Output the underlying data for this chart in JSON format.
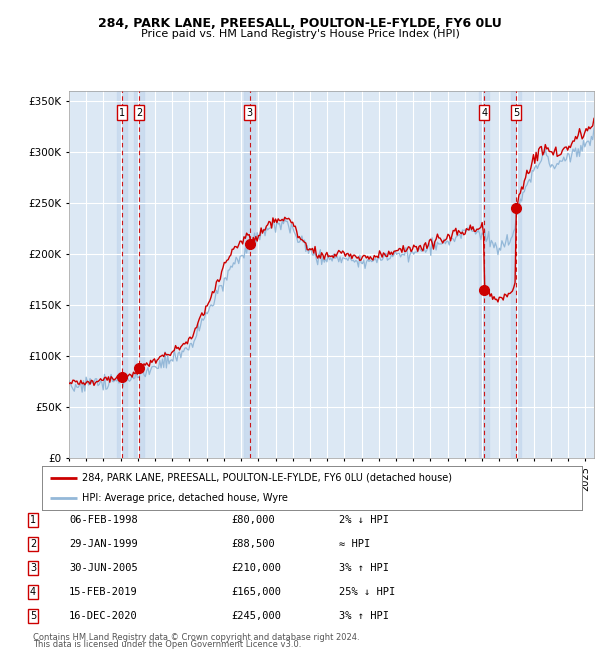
{
  "title1": "284, PARK LANE, PREESALL, POULTON-LE-FYLDE, FY6 0LU",
  "title2": "Price paid vs. HM Land Registry's House Price Index (HPI)",
  "legend_line1": "284, PARK LANE, PREESALL, POULTON-LE-FYLDE, FY6 0LU (detached house)",
  "legend_line2": "HPI: Average price, detached house, Wyre",
  "footer1": "Contains HM Land Registry data © Crown copyright and database right 2024.",
  "footer2": "This data is licensed under the Open Government Licence v3.0.",
  "sales": [
    {
      "num": 1,
      "date": "06-FEB-1998",
      "year": 1998.09,
      "price": 80000,
      "hpi_note": "2% ↓ HPI"
    },
    {
      "num": 2,
      "date": "29-JAN-1999",
      "year": 1999.08,
      "price": 88500,
      "hpi_note": "≈ HPI"
    },
    {
      "num": 3,
      "date": "30-JUN-2005",
      "year": 2005.49,
      "price": 210000,
      "hpi_note": "3% ↑ HPI"
    },
    {
      "num": 4,
      "date": "15-FEB-2019",
      "year": 2019.12,
      "price": 165000,
      "hpi_note": "25% ↓ HPI"
    },
    {
      "num": 5,
      "date": "16-DEC-2020",
      "year": 2020.96,
      "price": 245000,
      "hpi_note": "3% ↑ HPI"
    }
  ],
  "ylim": [
    0,
    360000
  ],
  "xlim_start": 1995.0,
  "xlim_end": 2025.5,
  "plot_bg": "#dce8f4",
  "grid_color": "#ffffff",
  "sale_line_color": "#cc0000",
  "hpi_line_color": "#94b8d8",
  "marker_color": "#cc0000",
  "vline_color": "#cc0000",
  "vband_color": "#c4d8ee",
  "hpi_anchors_x": [
    1995.0,
    1996.0,
    1997.0,
    1997.5,
    1998.0,
    1999.0,
    2000.0,
    2001.0,
    2002.0,
    2003.0,
    2004.0,
    2004.5,
    2005.0,
    2005.5,
    2006.0,
    2006.5,
    2007.0,
    2007.5,
    2008.0,
    2008.5,
    2009.0,
    2009.5,
    2010.0,
    2010.5,
    2011.0,
    2011.5,
    2012.0,
    2012.5,
    2013.0,
    2013.5,
    2014.0,
    2014.5,
    2015.0,
    2015.5,
    2016.0,
    2016.5,
    2017.0,
    2017.5,
    2018.0,
    2018.5,
    2019.0,
    2019.3,
    2019.5,
    2020.0,
    2020.5,
    2020.8,
    2021.0,
    2021.3,
    2021.5,
    2021.8,
    2022.0,
    2022.3,
    2022.5,
    2022.8,
    2023.0,
    2023.3,
    2023.6,
    2024.0,
    2024.3,
    2024.6,
    2025.0,
    2025.5
  ],
  "hpi_anchors_y": [
    72000,
    73000,
    75000,
    76000,
    78000,
    82000,
    90000,
    97000,
    108000,
    140000,
    175000,
    190000,
    198000,
    207000,
    215000,
    225000,
    228000,
    232000,
    225000,
    213000,
    200000,
    197000,
    196000,
    198000,
    197000,
    195000,
    193000,
    194000,
    196000,
    197000,
    199000,
    201000,
    203000,
    205000,
    207000,
    210000,
    214000,
    218000,
    221000,
    222000,
    223000,
    218000,
    215000,
    208000,
    213000,
    218000,
    240000,
    255000,
    265000,
    272000,
    280000,
    288000,
    292000,
    290000,
    288000,
    287000,
    289000,
    294000,
    298000,
    302000,
    308000,
    315000
  ]
}
